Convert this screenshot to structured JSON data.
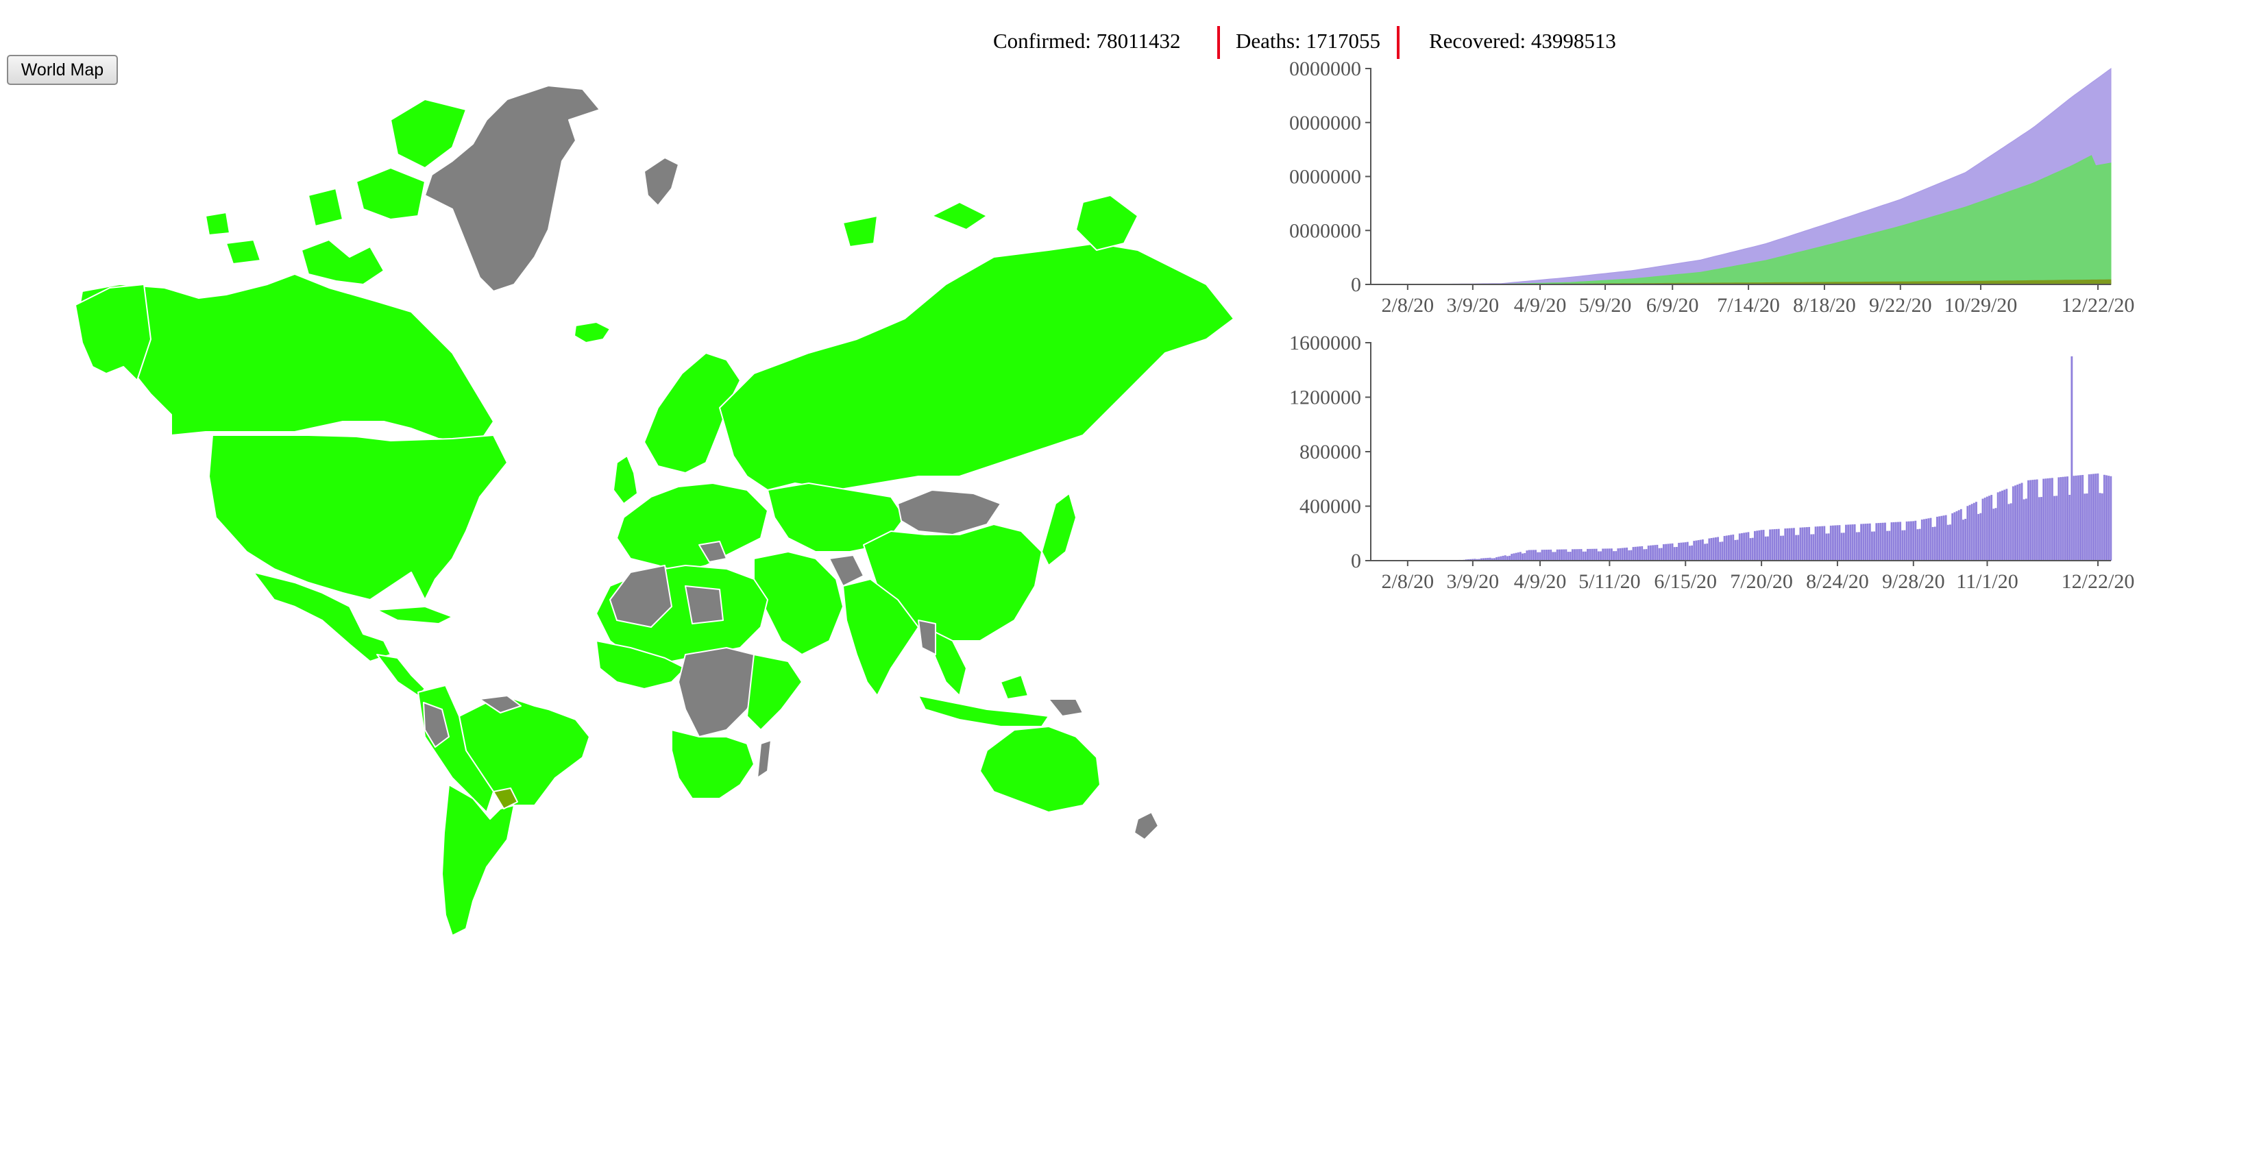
{
  "controls": {
    "world_map_button": "World Map"
  },
  "stats": {
    "confirmed": "Confirmed: 78011432",
    "deaths": "Deaths: 1717055",
    "recovered": "Recovered: 43998513"
  },
  "colors": {
    "ocean": "#ffffff",
    "no_data": "#808080",
    "low_ratio": "#22ff00",
    "high_ratio": "#77aa00",
    "border": "#ffffff",
    "confirmed_area": "#a99ae6",
    "recovered_area": "#6dd96d",
    "deaths_area": "#7e9a1e",
    "daily_bars": "#8f80dc",
    "separator": "#e8001c"
  },
  "map": {
    "title": "",
    "countries_no_data": [
      "Greenland",
      "Iceland-area islands",
      "Mongolia",
      "Central Africa",
      "Madagascar"
    ],
    "countries_highlighted": [
      "Sweden",
      "Uruguay"
    ]
  },
  "chart_data": [
    {
      "type": "area",
      "title": "",
      "x_tick_labels": [
        "2/8/20",
        "3/9/20",
        "4/9/20",
        "5/9/20",
        "6/9/20",
        "7/14/20",
        "8/18/20",
        "9/22/20",
        "10/29/20",
        "12/22/20"
      ],
      "y_tick_labels": [
        "0",
        "0000000",
        "0000000",
        "0000000",
        "0000000"
      ],
      "x_range": [
        "1/22/20",
        "12/28/20"
      ],
      "ylim": [
        0,
        80000000
      ],
      "series": [
        {
          "key": "confirmed",
          "x": [
            "1/22/20",
            "2/22/20",
            "3/22/20",
            "4/22/20",
            "5/22/20",
            "6/22/20",
            "7/22/20",
            "8/22/20",
            "9/22/20",
            "10/22/20",
            "11/22/20",
            "12/10/20",
            "12/28/20"
          ],
          "values": [
            0,
            80000,
            340000,
            2600000,
            5200000,
            9100000,
            15100000,
            23200000,
            31500000,
            41500000,
            58000000,
            69500000,
            80000000
          ]
        },
        {
          "key": "recovered",
          "x": [
            "1/22/20",
            "2/22/20",
            "3/22/20",
            "4/22/20",
            "5/22/20",
            "6/22/20",
            "7/22/20",
            "8/22/20",
            "9/22/20",
            "10/22/20",
            "11/22/20",
            "12/10/20",
            "12/20/20",
            "12/21/20",
            "12/28/20"
          ],
          "values": [
            0,
            20000,
            100000,
            700000,
            2100000,
            4500000,
            8900000,
            15100000,
            21600000,
            28700000,
            37500000,
            44000000,
            48200000,
            44000000,
            45000000
          ]
        },
        {
          "key": "deaths",
          "x": [
            "1/22/20",
            "3/22/20",
            "4/22/20",
            "6/22/20",
            "8/22/20",
            "10/22/20",
            "12/28/20"
          ],
          "values": [
            0,
            15000,
            180000,
            470000,
            800000,
            1150000,
            1750000
          ]
        }
      ]
    },
    {
      "type": "bar",
      "title": "",
      "x_tick_labels": [
        "2/8/20",
        "3/9/20",
        "4/9/20",
        "5/11/20",
        "6/15/20",
        "7/20/20",
        "8/24/20",
        "9/28/20",
        "11/1/20",
        "12/22/20"
      ],
      "y_tick_labels": [
        "0",
        "400000",
        "800000",
        "1200000",
        "1600000"
      ],
      "ylim": [
        0,
        1600000
      ],
      "x_range": [
        "1/22/20",
        "12/28/20"
      ],
      "trend_anchors": {
        "x": [
          "1/22/20",
          "3/1/20",
          "3/20/20",
          "4/4/20",
          "5/15/20",
          "6/15/20",
          "7/20/20",
          "8/24/20",
          "9/28/20",
          "10/15/20",
          "11/1/20",
          "11/20/20",
          "12/22/20",
          "12/28/20"
        ],
        "values": [
          0,
          3000,
          25000,
          78000,
          90000,
          135000,
          225000,
          260000,
          290000,
          340000,
          470000,
          590000,
          640000,
          620000
        ]
      },
      "spike": {
        "x": "12/10/20",
        "value": 1500000
      }
    }
  ]
}
